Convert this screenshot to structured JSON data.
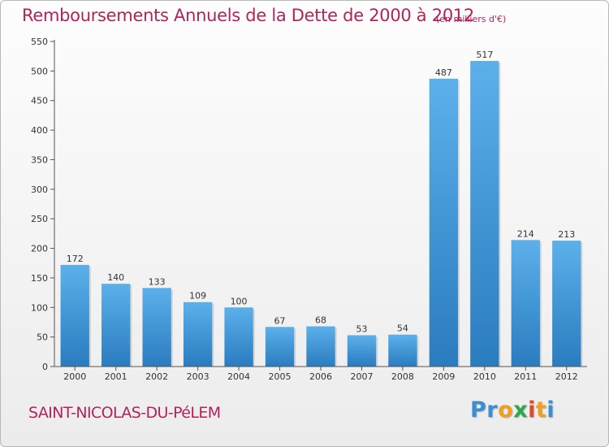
{
  "chart_data": {
    "type": "bar",
    "title": "Remboursements Annuels de la Dette de 2000 à 2012",
    "subtitle": "(en milliers d'€)",
    "categories": [
      "2000",
      "2001",
      "2002",
      "2003",
      "2004",
      "2005",
      "2006",
      "2007",
      "2008",
      "2009",
      "2010",
      "2011",
      "2012"
    ],
    "values": [
      172,
      140,
      133,
      109,
      100,
      67,
      68,
      53,
      54,
      487,
      517,
      214,
      213
    ],
    "ylim": [
      0,
      550
    ],
    "yticks": [
      0,
      50,
      100,
      150,
      200,
      250,
      300,
      350,
      400,
      450,
      500,
      550
    ],
    "grid": false,
    "bar_color": "#3d96d8",
    "bar_color_light": "#5cb0ea",
    "bar_color_dark": "#2a7cbf"
  },
  "footer": {
    "commune": "SAINT-NICOLAS-DU-PéLEM",
    "logo_letters": [
      {
        "char": "P",
        "color": "#3a8fd4"
      },
      {
        "char": "r",
        "color": "#3a8fd4"
      },
      {
        "char": "o",
        "color": "#f0a020"
      },
      {
        "char": "x",
        "color": "#2aa84a"
      },
      {
        "char": "i",
        "color": "#e2482a"
      },
      {
        "char": "t",
        "color": "#f0a020"
      },
      {
        "char": "i",
        "color": "#3a8fd4"
      }
    ]
  },
  "colors": {
    "title": "#b0245c",
    "axis": "#333333"
  }
}
